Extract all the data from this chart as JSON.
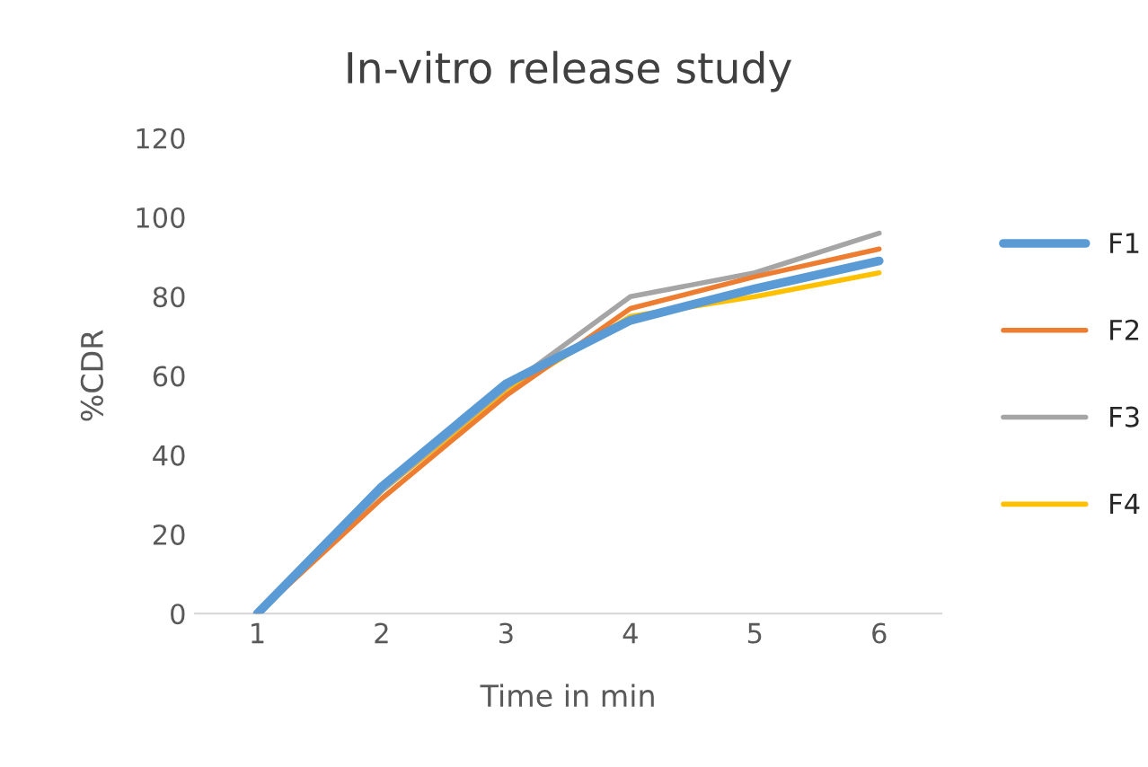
{
  "chart_data": {
    "type": "line",
    "title": "In-vitro release study",
    "xlabel": "Time in min",
    "ylabel": "%CDR",
    "categories": [
      "1",
      "2",
      "3",
      "4",
      "5",
      "6"
    ],
    "series": [
      {
        "name": "F1",
        "color": "#5b9bd5",
        "values": [
          0,
          32,
          58,
          74,
          82,
          89
        ]
      },
      {
        "name": "F2",
        "color": "#ed7d31",
        "values": [
          0,
          29,
          55,
          77,
          85,
          92
        ]
      },
      {
        "name": "F3",
        "color": "#a5a5a5",
        "values": [
          0,
          31,
          57,
          80,
          86,
          96
        ]
      },
      {
        "name": "F4",
        "color": "#ffc000",
        "values": [
          0,
          31,
          56,
          75,
          80,
          86
        ]
      }
    ],
    "ylim": [
      0,
      120
    ],
    "yticks": [
      0,
      20,
      40,
      60,
      80,
      100,
      120
    ],
    "grid": false,
    "legend": "right",
    "marker": "none",
    "line_style": "solid"
  }
}
